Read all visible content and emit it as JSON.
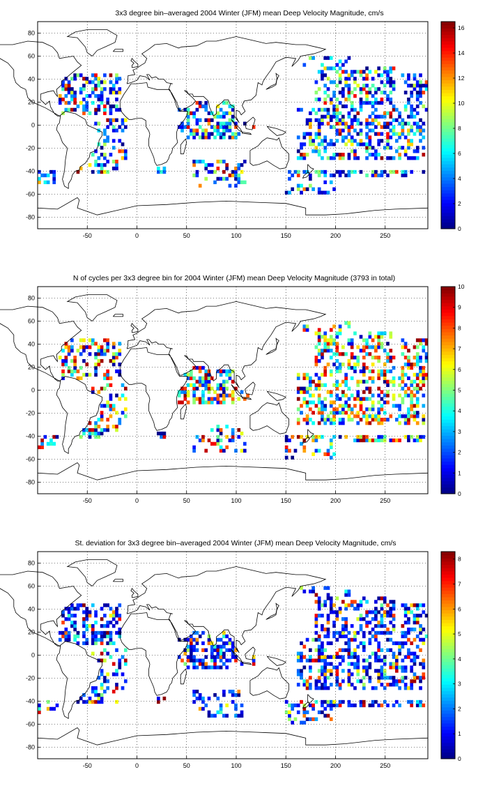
{
  "figure": {
    "panels": [
      {
        "title": "3x3 degree bin–averaged 2004 Winter (JFM) mean Deep Velocity Magnitude, cm/s",
        "colorbar": {
          "min": 0,
          "max": 16.5,
          "ticks": [
            0,
            2,
            4,
            6,
            8,
            10,
            12,
            14,
            16
          ]
        },
        "seed": 17,
        "mode": "velocity"
      },
      {
        "title": "N of cycles per 3x3 degree bin for 2004 Winter (JFM) mean Deep Velocity Magnitude (3793 in total)",
        "colorbar": {
          "min": 0,
          "max": 10,
          "ticks": [
            0,
            1,
            2,
            3,
            4,
            5,
            6,
            7,
            8,
            9,
            10
          ]
        },
        "seed": 29,
        "mode": "count"
      },
      {
        "title": "St. deviation for 3x3 degree bin–averaged 2004 Winter (JFM) mean Deep Velocity Magnitude, cm/s",
        "colorbar": {
          "min": 0,
          "max": 8.3,
          "ticks": [
            0,
            1,
            2,
            3,
            4,
            5,
            6,
            7,
            8
          ]
        },
        "seed": 41,
        "mode": "std"
      }
    ],
    "x_ticks": [
      -50,
      0,
      50,
      100,
      150,
      200,
      250
    ],
    "y_ticks": [
      80,
      60,
      40,
      20,
      0,
      -20,
      -40,
      -60,
      -80
    ]
  },
  "chart_data": [
    {
      "type": "heatmap",
      "title": "3x3 degree bin–averaged 2004 Winter (JFM) mean Deep Velocity Magnitude, cm/s",
      "xlim": [
        -100,
        293
      ],
      "ylim": [
        -90,
        90
      ],
      "bin_size_deg": 3,
      "colormap": "jet",
      "grid": true,
      "colorbar_range": [
        0,
        16.5
      ]
    },
    {
      "type": "heatmap",
      "title": "N of cycles per 3x3 degree bin for 2004 Winter (JFM) mean Deep Velocity Magnitude (3793 in total)",
      "xlim": [
        -100,
        293
      ],
      "ylim": [
        -90,
        90
      ],
      "bin_size_deg": 3,
      "colormap": "jet",
      "grid": true,
      "colorbar_range": [
        0,
        10
      ]
    },
    {
      "type": "heatmap",
      "title": "St. deviation for 3x3 degree bin–averaged 2004 Winter (JFM) mean Deep Velocity Magnitude, cm/s",
      "xlim": [
        -100,
        293
      ],
      "ylim": [
        -90,
        90
      ],
      "bin_size_deg": 3,
      "colormap": "jet",
      "grid": true,
      "colorbar_range": [
        0,
        8.3
      ]
    }
  ]
}
